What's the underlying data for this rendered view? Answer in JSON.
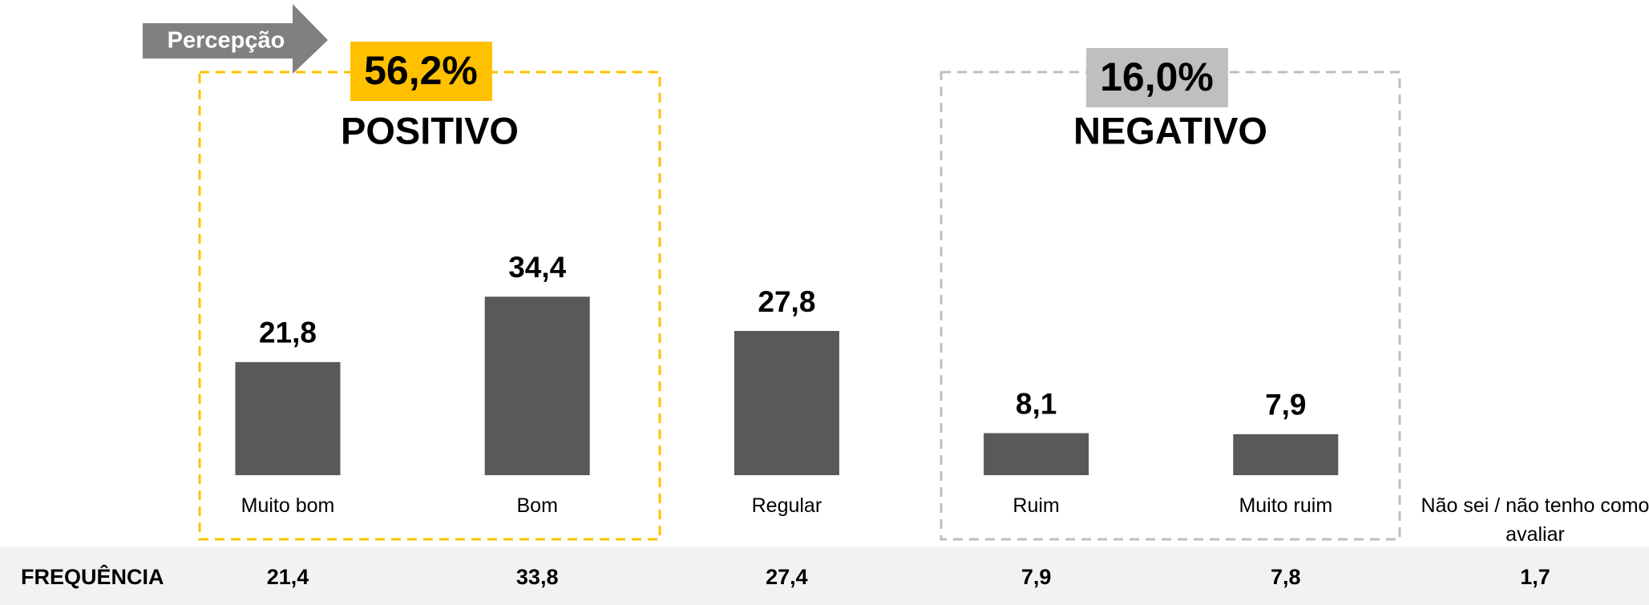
{
  "chart_data": {
    "type": "bar",
    "tag": "Percepção",
    "categories": [
      "Muito bom",
      "Bom",
      "Regular",
      "Ruim",
      "Muito ruim",
      "Não sei / não tenho como avaliar"
    ],
    "values": [
      21.8,
      34.4,
      27.8,
      8.1,
      7.9,
      null
    ],
    "value_labels": [
      "21,8",
      "34,4",
      "27,8",
      "8,1",
      "7,9",
      null
    ],
    "color": "#595959",
    "ylim": [
      0,
      40
    ],
    "groups": [
      {
        "label": "POSITIVO",
        "total": "56,2%",
        "color": "#ffc000"
      },
      {
        "label": "NEGATIVO",
        "total": "16,0%",
        "color": "#bfbfbf"
      }
    ],
    "table": {
      "header": "FREQUÊNCIA",
      "values": [
        "21,4",
        "33,8",
        "27,4",
        "7,9",
        "7,8",
        "1,7"
      ]
    }
  }
}
